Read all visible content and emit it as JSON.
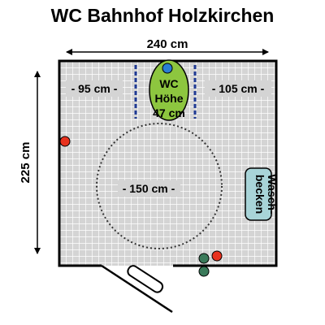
{
  "title": "WC Bahnhof Holzkirchen",
  "dimensions": {
    "width": "240 cm",
    "depth": "225 cm",
    "left_clearance": "- 95 cm -",
    "right_clearance": "- 105 cm -",
    "turning_circle": "- 150 cm -"
  },
  "toilet": {
    "label_line1": "WC",
    "label_line2": "Höhe",
    "label_line3": "47 cm"
  },
  "sink": {
    "label_line1": "Wasch-",
    "label_line2": "becken"
  },
  "colors": {
    "floor": "#d4d4d4",
    "grid": "#ffffff",
    "wall": "#000000",
    "toilet": "#8dc63f",
    "sink": "#a8d4d8",
    "grab_bar": "#1f3a93",
    "marker_red": "#e8321e",
    "marker_green": "#3a7a5a",
    "marker_blue": "#2a7fd4"
  },
  "icons": {
    "toilet": "toilet-icon",
    "sink": "sink-icon",
    "door": "door-icon",
    "turning_circle": "turning-circle-icon"
  }
}
